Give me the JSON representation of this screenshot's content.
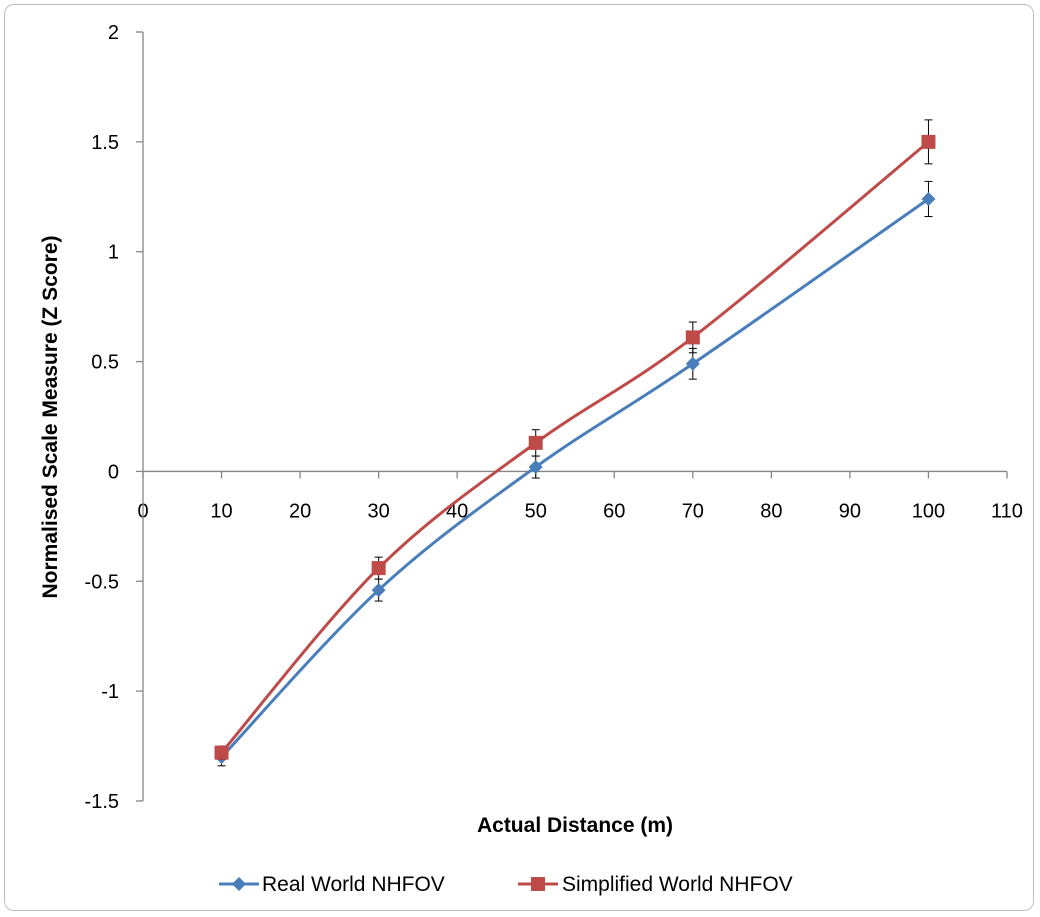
{
  "chart_data": {
    "type": "line",
    "title": "",
    "xlabel": "Actual Distance (m)",
    "ylabel": "Normalised Scale Measure (Z Score)",
    "xlim": [
      0,
      110
    ],
    "ylim": [
      -1.5,
      2
    ],
    "xticks": [
      "0",
      "10",
      "20",
      "30",
      "40",
      "50",
      "60",
      "70",
      "80",
      "90",
      "100",
      "110"
    ],
    "yticks": [
      "2",
      "1.5",
      "1",
      "0.5",
      "0",
      "-0.5",
      "-1",
      "-1.5"
    ],
    "x": [
      10,
      30,
      50,
      70,
      100
    ],
    "series": [
      {
        "name": "Real World NHFOV",
        "color": "#4a7ebb",
        "marker": "diamond",
        "values": [
          -1.3,
          -0.54,
          0.02,
          0.49,
          1.24
        ],
        "error": [
          0.04,
          0.05,
          0.05,
          0.07,
          0.08
        ]
      },
      {
        "name": "Simplified World NHFOV",
        "color": "#be4b48",
        "marker": "square",
        "values": [
          -1.28,
          -0.44,
          0.13,
          0.61,
          1.5
        ],
        "error": [
          0.03,
          0.05,
          0.06,
          0.07,
          0.1
        ]
      }
    ],
    "grid": false,
    "legend_position": "bottom"
  }
}
